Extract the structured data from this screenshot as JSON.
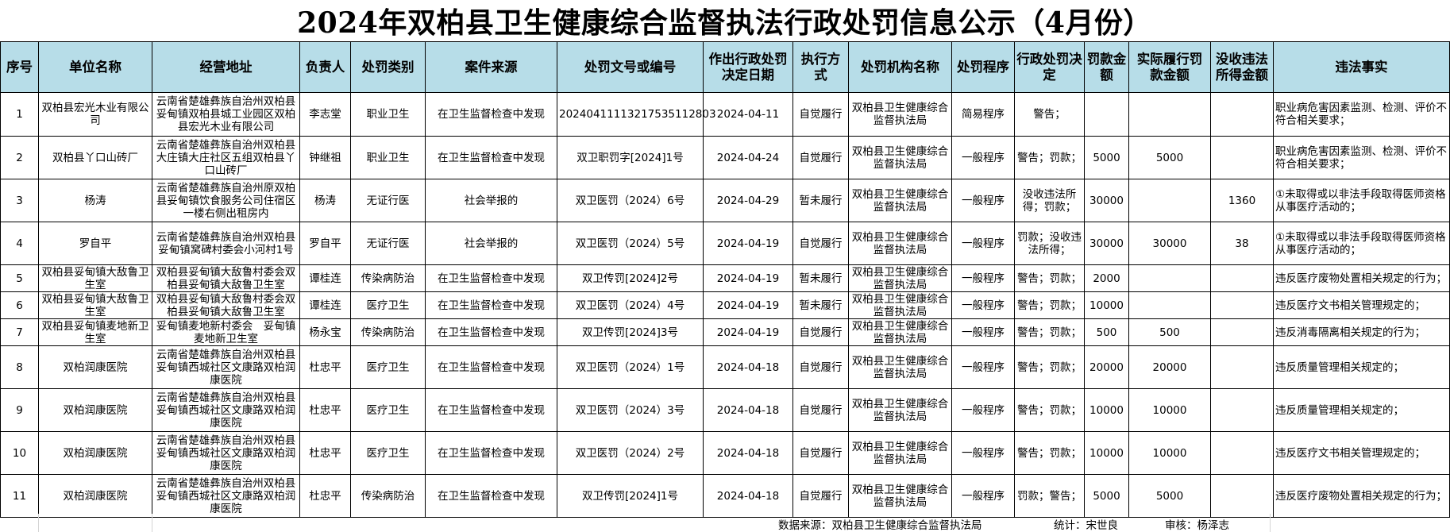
{
  "title": "2024年双柏县卫生健康综合监督执法行政处罚信息公示（4月份）",
  "columns": [
    "序号",
    "单位名称",
    "经营地址",
    "负责人",
    "处罚类别",
    "案件来源",
    "处罚文号或编号",
    "作出行政处罚决定日期",
    "执行方式",
    "处罚机构名称",
    "处罚程序",
    "行政处罚决定",
    "罚款金额",
    "实际履行罚款金额",
    "没收违法所得金额",
    "违法事实"
  ],
  "rows": [
    [
      "1",
      "双柏县宏光木业有限公司",
      "云南省楚雄彝族自治州双柏县妥甸镇双柏县城工业园区双柏县宏光木业有限公司",
      "李志堂",
      "职业卫生",
      "在卫生监督检查中发现",
      "20240411113217535112803",
      "2024-04-11",
      "自觉履行",
      "双柏县卫生健康综合监督执法局",
      "简易程序",
      "警告；",
      "",
      "",
      "",
      "职业病危害因素监测、检测、评价不符合相关要求；"
    ],
    [
      "2",
      "双柏县丫口山砖厂",
      "云南省楚雄彝族自治州双柏县大庄镇大庄社区五组双柏县丫口山砖厂",
      "钟继祖",
      "职业卫生",
      "在卫生监督检查中发现",
      "双卫职罚字[2024]1号",
      "2024-04-24",
      "自觉履行",
      "双柏县卫生健康综合监督执法局",
      "一般程序",
      "警告；罚款；",
      "5000",
      "5000",
      "",
      "职业病危害因素监测、检测、评价不符合相关要求；"
    ],
    [
      "3",
      "杨涛",
      "云南省楚雄彝族自治州原双柏县妥甸镇饮食服务公司住宿区一楼右侧出租房内",
      "杨涛",
      "无证行医",
      "社会举报的",
      "双卫医罚（2024）6号",
      "2024-04-29",
      "暂未履行",
      "双柏县卫生健康综合监督执法局",
      "一般程序",
      "没收违法所得；罚款；",
      "30000",
      "",
      "1360",
      "①未取得或以非法手段取得医师资格从事医疗活动的；"
    ],
    [
      "4",
      "罗自平",
      "云南省楚雄彝族自治州双柏县妥甸镇窝碑村委会小河村1号",
      "罗自平",
      "无证行医",
      "社会举报的",
      "双卫医罚（2024）5号",
      "2024-04-19",
      "自觉履行",
      "双柏县卫生健康综合监督执法局",
      "一般程序",
      "罚款；没收违法所得；",
      "30000",
      "30000",
      "38",
      "①未取得或以非法手段取得医师资格从事医疗活动的；"
    ],
    [
      "5",
      "双柏县妥甸镇大敌鲁卫生室",
      "双柏县妥甸镇大敌鲁村委会双柏县妥甸镇大敌鲁卫生室",
      "谭桂连",
      "传染病防治",
      "在卫生监督检查中发现",
      "双卫传罚[2024]2号",
      "2024-04-19",
      "暂未履行",
      "双柏县卫生健康综合监督执法局",
      "一般程序",
      "警告；罚款；",
      "2000",
      "",
      "",
      "违反医疗废物处置相关规定的行为；"
    ],
    [
      "6",
      "双柏县妥甸镇大敌鲁卫生室",
      "双柏县妥甸镇大敌鲁村委会双柏县妥甸镇大敌鲁卫生室",
      "谭桂连",
      "医疗卫生",
      "在卫生监督检查中发现",
      "双卫医罚（2024）4号",
      "2024-04-19",
      "暂未履行",
      "双柏县卫生健康综合监督执法局",
      "一般程序",
      "警告；罚款；",
      "10000",
      "",
      "",
      "违反医疗文书相关管理规定的；"
    ],
    [
      "7",
      "双柏县妥甸镇麦地新卫生室",
      "妥甸镇麦地新村委会　妥甸镇麦地新卫生室",
      "杨永宝",
      "传染病防治",
      "在卫生监督检查中发现",
      "双卫传罚[2024]3号",
      "2024-04-19",
      "自觉履行",
      "双柏县卫生健康综合监督执法局",
      "一般程序",
      "警告；罚款；",
      "500",
      "500",
      "",
      "违反消毒隔离相关规定的行为；"
    ],
    [
      "8",
      "双柏润康医院",
      "云南省楚雄彝族自治州双柏县妥甸镇西城社区文康路双柏润康医院",
      "杜忠平",
      "医疗卫生",
      "在卫生监督检查中发现",
      "双卫医罚（2024）1号",
      "2024-04-18",
      "自觉履行",
      "双柏县卫生健康综合监督执法局",
      "一般程序",
      "警告；罚款；",
      "20000",
      "20000",
      "",
      "违反质量管理相关规定的；"
    ],
    [
      "9",
      "双柏润康医院",
      "云南省楚雄彝族自治州双柏县妥甸镇西城社区文康路双柏润康医院",
      "杜忠平",
      "医疗卫生",
      "在卫生监督检查中发现",
      "双卫医罚（2024）3号",
      "2024-04-18",
      "自觉履行",
      "双柏县卫生健康综合监督执法局",
      "一般程序",
      "警告；罚款；",
      "10000",
      "10000",
      "",
      "违反质量管理相关规定的；"
    ],
    [
      "10",
      "双柏润康医院",
      "云南省楚雄彝族自治州双柏县妥甸镇西城社区文康路双柏润康医院",
      "杜忠平",
      "医疗卫生",
      "在卫生监督检查中发现",
      "双卫医罚（2024）2号",
      "2024-04-18",
      "自觉履行",
      "双柏县卫生健康综合监督执法局",
      "一般程序",
      "警告；罚款；",
      "10000",
      "10000",
      "",
      "违反医疗文书相关管理规定的；"
    ],
    [
      "11",
      "双柏润康医院",
      "云南省楚雄彝族自治州双柏县妥甸镇西城社区文康路双柏润康医院",
      "杜忠平",
      "传染病防治",
      "在卫生监督检查中发现",
      "双卫传罚[2024]1号",
      "2024-04-18",
      "自觉履行",
      "双柏县卫生健康综合监督执法局",
      "一般程序",
      "罚款；警告；",
      "5000",
      "5000",
      "",
      "违反医疗废物处置相关规定的行为；"
    ]
  ],
  "footer": {
    "source": "数据来源：双柏县卫生健康综合监督执法局",
    "stat": "统计：宋世良",
    "review": "审核：杨泽志"
  },
  "colors": {
    "header_bg": "#b7dde8",
    "border": "#000000"
  }
}
